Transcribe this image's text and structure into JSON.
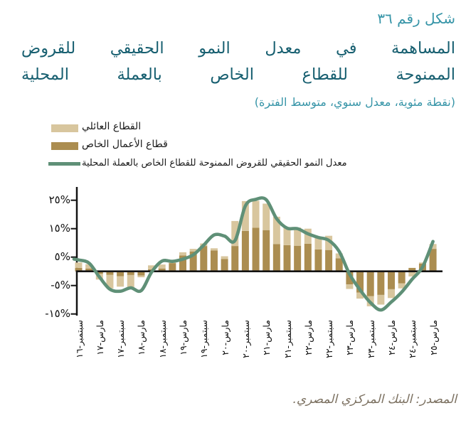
{
  "figure": {
    "number_label": "شكل رقم ٣٦",
    "title_line1": "المساهمة في معدل النمو الحقيقي للقروض",
    "title_line2": "الممنوحة للقطاع الخاص بالعملة المحلية",
    "subtitle": "(نقطة مئوية، معدل سنوي، متوسط الفترة)",
    "source": "المصدر: البنك المركزي المصري."
  },
  "legend": {
    "items": [
      {
        "label": "القطاع العائلي",
        "type": "box",
        "color": "#d8c69e"
      },
      {
        "label": "قطاع الأعمال الخاص",
        "type": "box",
        "color": "#ab8d50"
      },
      {
        "label": "معدل النمو الحقيقي للقروض الممنوحة للقطاع الخاص بالعملة المحلية",
        "type": "line",
        "color": "#5f9077"
      }
    ]
  },
  "colors": {
    "household": "#d8c69e",
    "business": "#ab8d50",
    "growth_line": "#5f9077",
    "axis": "#141414",
    "heading_teal": "#3795a8",
    "title_dark_teal": "#175f70",
    "source_text": "#7b7060"
  },
  "chart_data": {
    "type": "bar",
    "stacked": true,
    "title": "المساهمة في معدل النمو الحقيقي للقروض الممنوحة للقطاع الخاص بالعملة المحلية",
    "unit_note": "نقطة مئوية، معدل سنوي، متوسط الفترة",
    "frequency": "quarterly",
    "n_points": 35,
    "x_tick_labels": [
      "سبتمبر-١٦",
      "مارس-١٧",
      "سبتمبر-١٧",
      "مارس-١٨",
      "سبتمبر-١٨",
      "مارس-١٩",
      "سبتمبر-١٩",
      "مارس-٢٠",
      "سبتمبر-٢٠",
      "مارس-٢١",
      "سبتمبر-٢١",
      "مارس-٢٢",
      "سبتمبر-٢٢",
      "مارس-٢٣",
      "سبتمبر-٢٣",
      "مارس-٢٤",
      "سبتمبر-٢٤",
      "مارس-٢٥"
    ],
    "x_tick_on_every_other_bar": true,
    "series": [
      {
        "name": "القطاع العائلي",
        "color": "#d8c69e",
        "values": [
          1.9,
          1.5,
          -2.0,
          -4.8,
          -3.7,
          -4.5,
          -0.6,
          1.4,
          1.4,
          0.9,
          1.1,
          0.9,
          0.9,
          0.8,
          1.0,
          8.8,
          10.5,
          9.5,
          9.3,
          9.6,
          6.2,
          6.4,
          5.3,
          4.4,
          5.0,
          1.7,
          -1.6,
          -2.1,
          -3.6,
          -3.4,
          -3.1,
          -1.8,
          -1.8,
          0.4,
          1.7
        ]
      },
      {
        "name": "قطاع الأعمال الخاص",
        "color": "#ab8d50",
        "values": [
          1.2,
          1.0,
          -0.9,
          -1.2,
          -1.7,
          -1.3,
          -1.5,
          0.7,
          1.0,
          2.9,
          5.6,
          7.0,
          8.9,
          7.3,
          4.3,
          8.9,
          14.2,
          15.3,
          14.5,
          9.6,
          9.2,
          9.0,
          9.7,
          7.7,
          7.5,
          4.6,
          -4.6,
          -7.5,
          -8.7,
          -8.3,
          -6.3,
          -4.2,
          1.2,
          2.7,
          7.9
        ]
      }
    ],
    "line_series": {
      "name": "معدل النمو الحقيقي للقروض الممنوحة للقطاع الخاص بالعملة المحلية",
      "color": "#5f9077",
      "values": [
        4.0,
        2.9,
        -2.0,
        -6.3,
        -7.0,
        -5.8,
        -6.8,
        -0.3,
        3.6,
        3.5,
        4.3,
        5.8,
        9.2,
        12.8,
        12.4,
        10.8,
        23.0,
        25.3,
        25.2,
        18.5,
        15.2,
        15.0,
        13.2,
        11.9,
        10.9,
        7.0,
        -1.0,
        -6.5,
        -11.0,
        -13.6,
        -10.8,
        -7.3,
        -2.8,
        1.5,
        10.5
      ]
    },
    "y_ticks": [
      {
        "label": "٢٥%",
        "value": 25
      },
      {
        "label": "١٥%",
        "value": 15
      },
      {
        "label": "٥%",
        "value": 5
      },
      {
        "label": "-٥%",
        "value": -5
      },
      {
        "label": "-١٥%",
        "value": -15
      }
    ],
    "ylim": [
      -15,
      25
    ],
    "grid": false,
    "legend_position": "top-left"
  }
}
